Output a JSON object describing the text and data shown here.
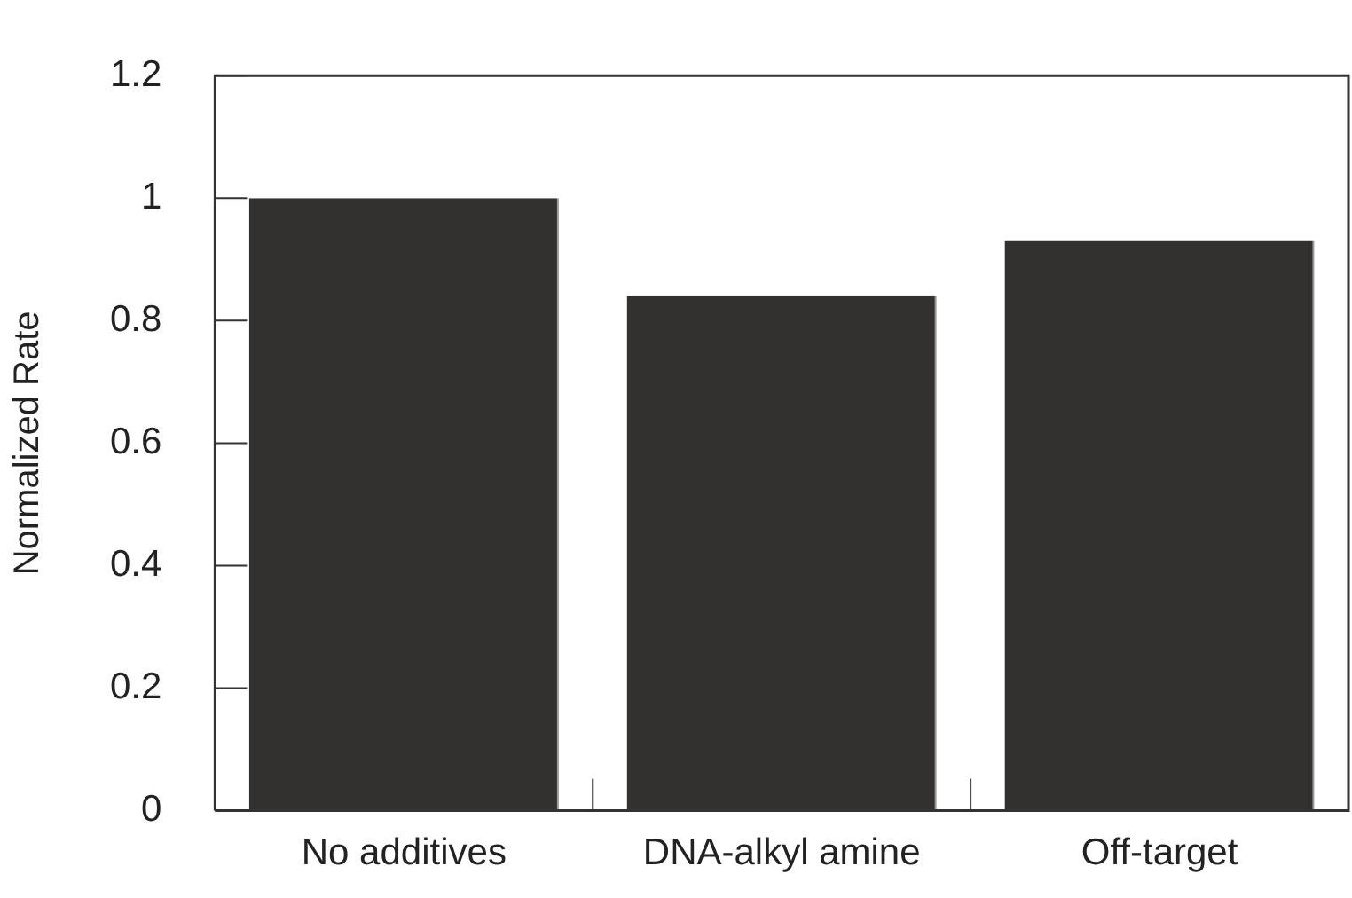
{
  "chart_data": {
    "type": "bar",
    "ylabel": "Normalized Rate",
    "categories": [
      "No additives",
      "DNA-alkyl amine",
      "Off-target"
    ],
    "values": [
      1.0,
      0.84,
      0.93
    ],
    "color": "#333130",
    "ylim": [
      0,
      1.2
    ],
    "yticks": [
      0,
      0.2,
      0.4,
      0.6,
      0.8,
      1,
      1.2
    ],
    "grid": false,
    "legend": false
  }
}
